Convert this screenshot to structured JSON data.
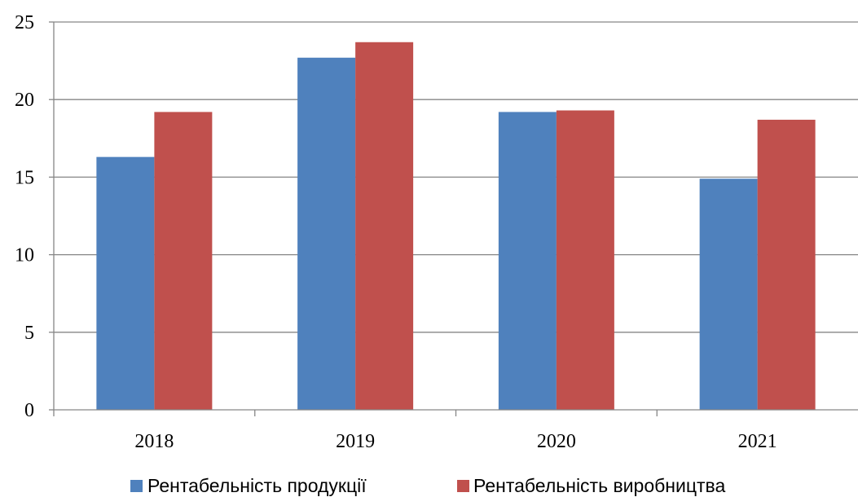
{
  "chart_data": {
    "type": "bar",
    "title": "",
    "xlabel": "",
    "ylabel": "",
    "categories": [
      "2018",
      "2019",
      "2020",
      "2021"
    ],
    "series": [
      {
        "name": "Рентабельність продукції",
        "values": [
          16.3,
          22.7,
          19.2,
          14.9
        ],
        "color": "#4F81BD"
      },
      {
        "name": "Рентабельність виробництва",
        "values": [
          19.2,
          23.7,
          19.3,
          18.7
        ],
        "color": "#C0504D"
      }
    ],
    "ylim": [
      0,
      25
    ],
    "yticks": [
      0,
      5,
      10,
      15,
      20,
      25
    ],
    "grid": true,
    "legend_position": "bottom"
  }
}
